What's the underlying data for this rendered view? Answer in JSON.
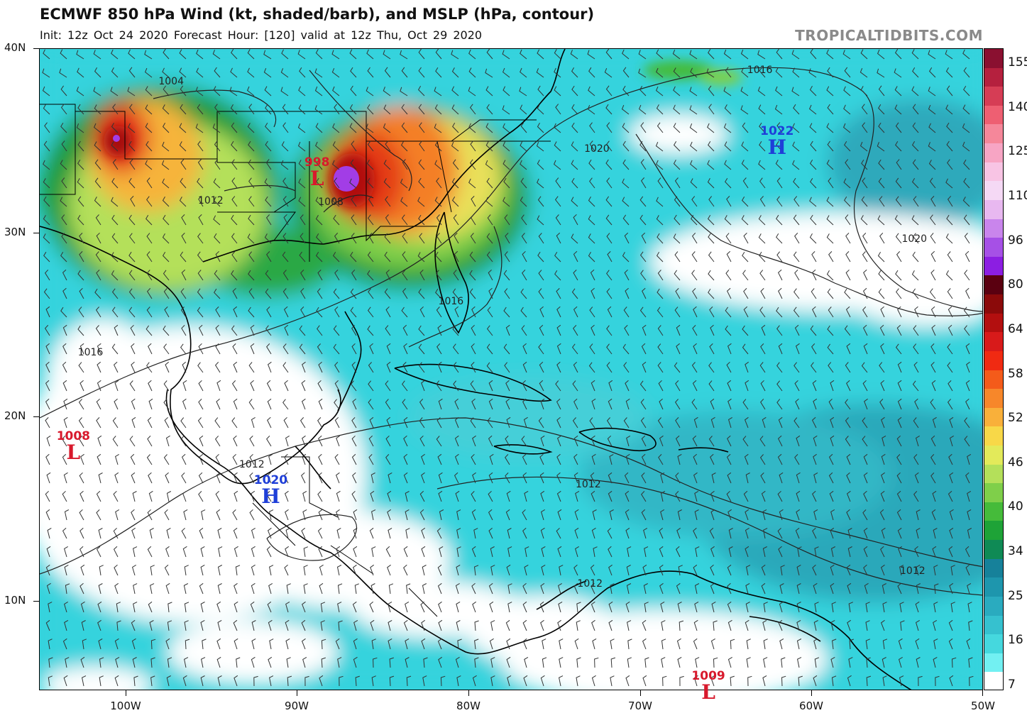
{
  "header": {
    "title": "ECMWF 850 hPa Wind (kt, shaded/barb), and MSLP (hPa, contour)",
    "subtitle": "Init: 12z Oct 24 2020   Forecast Hour: [120]   valid at 12z Thu, Oct 29 2020",
    "credit": "TROPICALTIDBITS.COM"
  },
  "map": {
    "lat_labels": [
      "40N",
      "30N",
      "20N",
      "10N"
    ],
    "lon_labels": [
      "100W",
      "90W",
      "80W",
      "70W",
      "60W",
      "50W"
    ],
    "lat_range": [
      5,
      40
    ],
    "lon_range": [
      -105,
      -50
    ],
    "pressure_centers": [
      {
        "type": "L",
        "value": "998",
        "lon": -88.8,
        "lat": 33.3
      },
      {
        "type": "H",
        "value": "1022",
        "lon": -62.0,
        "lat": 35.0
      },
      {
        "type": "L",
        "value": "1008",
        "lon": -103.0,
        "lat": 18.4
      },
      {
        "type": "H",
        "value": "1020",
        "lon": -91.5,
        "lat": 16.0
      },
      {
        "type": "L",
        "value": "1009",
        "lon": -66.0,
        "lat": 5.3
      }
    ],
    "isobar_labels": [
      {
        "text": "1004",
        "lon": -97.3,
        "lat": 38.2
      },
      {
        "text": "1012",
        "lon": -95.0,
        "lat": 31.7
      },
      {
        "text": "1008",
        "lon": -88.0,
        "lat": 31.6
      },
      {
        "text": "1016",
        "lon": -63.0,
        "lat": 38.8
      },
      {
        "text": "1020",
        "lon": -72.5,
        "lat": 34.5
      },
      {
        "text": "1020",
        "lon": -54.0,
        "lat": 29.6
      },
      {
        "text": "1016",
        "lon": -81.0,
        "lat": 26.2
      },
      {
        "text": "1016",
        "lon": -102.0,
        "lat": 23.4
      },
      {
        "text": "1012",
        "lon": -92.6,
        "lat": 17.3
      },
      {
        "text": "1012",
        "lon": -73.0,
        "lat": 16.2
      },
      {
        "text": "1012",
        "lon": -54.1,
        "lat": 11.5
      },
      {
        "text": "1012",
        "lon": -72.9,
        "lat": 10.8
      }
    ]
  },
  "colorbar": {
    "labels": [
      "155",
      "140",
      "125",
      "110",
      "96",
      "80",
      "64",
      "58",
      "52",
      "46",
      "40",
      "34",
      "25",
      "16",
      "7"
    ],
    "colors": [
      "#8a1030",
      "#b5203e",
      "#d63d55",
      "#ee5f72",
      "#f5879a",
      "#f7a5c4",
      "#f8c4e4",
      "#f5d9f5",
      "#e8b8f0",
      "#c985ec",
      "#a650e6",
      "#8c1ee2",
      "#5a0010",
      "#8b0a0a",
      "#b30f0f",
      "#d81a1a",
      "#f02a12",
      "#f45b1a",
      "#f7872a",
      "#f9b03a",
      "#f8d848",
      "#e3ea5a",
      "#b4e05a",
      "#7fcf4a",
      "#45bb3a",
      "#1ea337",
      "#0f8a55",
      "#16819a",
      "#1e96ad",
      "#2aabbf",
      "#36c1cf",
      "#45d8de",
      "#72f0f2",
      "#ffffff"
    ]
  }
}
